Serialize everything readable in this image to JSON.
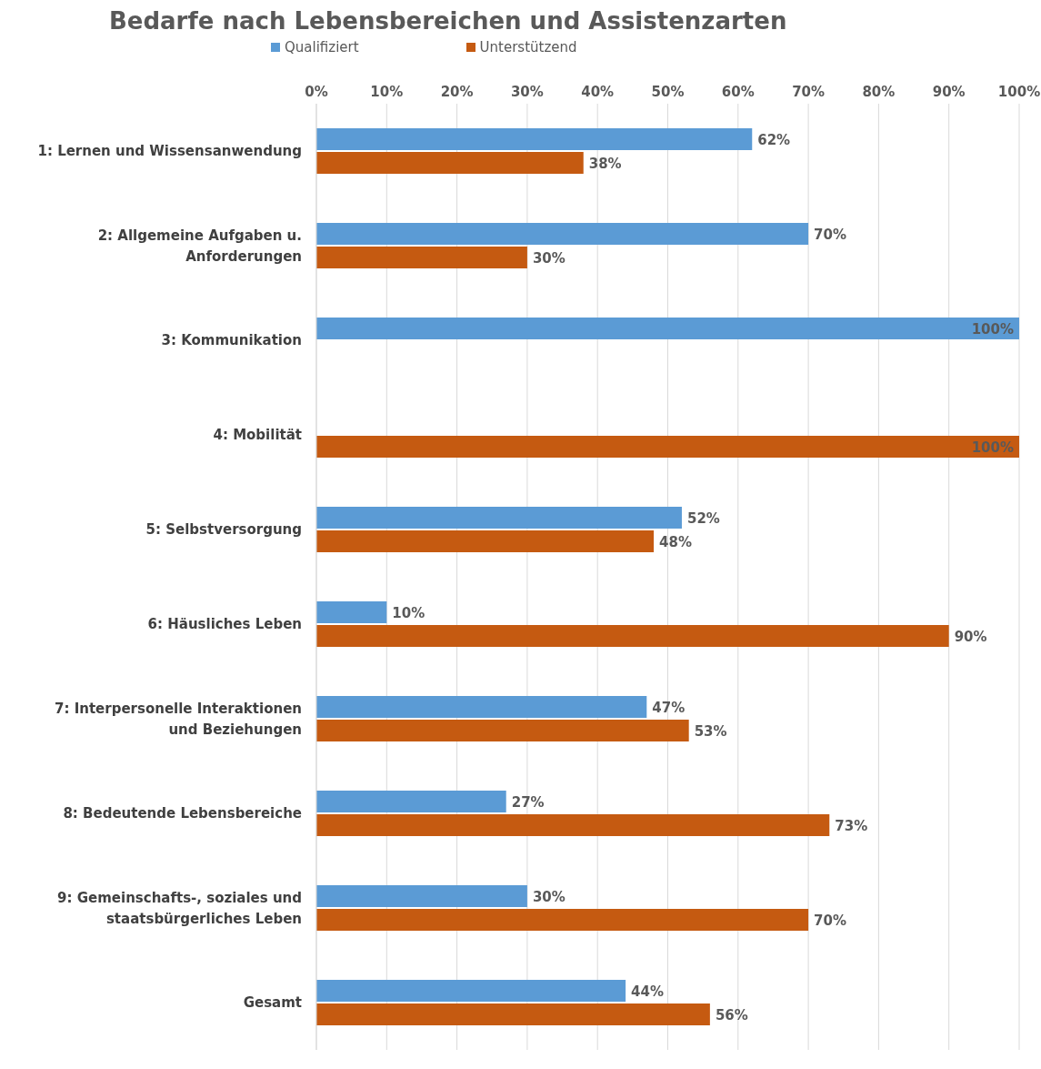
{
  "chart_data": {
    "type": "bar",
    "orientation": "horizontal",
    "title": "Bedarfe nach Lebensbereichen und Assistenzarten",
    "categories": [
      "1: Lernen und Wissensanwendung",
      "2: Allgemeine Aufgaben u. Anforderungen",
      "3: Kommunikation",
      "4: Mobilität",
      "5: Selbstversorgung",
      "6: Häusliches Leben",
      "7: Interpersonelle Interaktionen und Beziehungen",
      "8: Bedeutende Lebensbereiche",
      "9: Gemeinschafts-, soziales und staatsbürgerliches Leben",
      "Gesamt"
    ],
    "series": [
      {
        "name": "Qualifiziert",
        "color": "#5b9bd5",
        "values": [
          62,
          70,
          100,
          null,
          52,
          10,
          47,
          27,
          30,
          44
        ],
        "value_labels": [
          "62%",
          "70%",
          "100%",
          null,
          "52%",
          "10%",
          "47%",
          "27%",
          "30%",
          "44%"
        ]
      },
      {
        "name": "Unterstützend",
        "color": "#c55a11",
        "values": [
          38,
          30,
          null,
          100,
          48,
          90,
          53,
          73,
          70,
          56
        ],
        "value_labels": [
          "38%",
          "30%",
          null,
          "100%",
          "48%",
          "90%",
          "53%",
          "73%",
          "70%",
          "56%"
        ]
      }
    ],
    "xlim": [
      0,
      100
    ],
    "xticks": [
      {
        "value": 0,
        "label": "0%"
      },
      {
        "value": 10,
        "label": "10%"
      },
      {
        "value": 20,
        "label": "20%"
      },
      {
        "value": 30,
        "label": "30%"
      },
      {
        "value": 40,
        "label": "40%"
      },
      {
        "value": 50,
        "label": "50%"
      },
      {
        "value": 60,
        "label": "60%"
      },
      {
        "value": 70,
        "label": "70%"
      },
      {
        "value": 80,
        "label": "80%"
      },
      {
        "value": 90,
        "label": "90%"
      },
      {
        "value": 100,
        "label": "100%"
      }
    ],
    "grid": "x",
    "legend": "top"
  }
}
